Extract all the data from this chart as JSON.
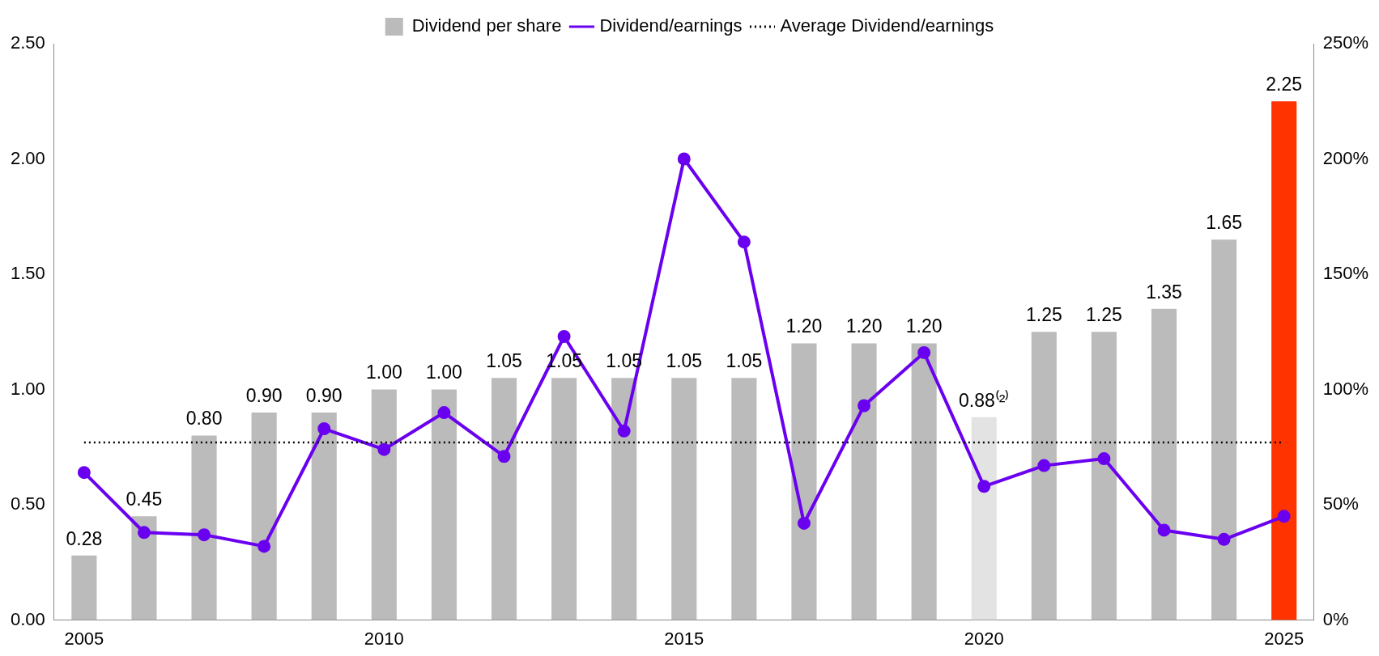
{
  "chart_data": {
    "type": "bar",
    "categories": [
      "2005",
      null,
      null,
      null,
      null,
      "2010",
      null,
      null,
      null,
      null,
      "2015",
      null,
      null,
      null,
      null,
      "2020",
      null,
      null,
      null,
      null,
      "2025"
    ],
    "series": [
      {
        "name": "Dividend per share",
        "colors": [
          "#bbbbbb",
          "#bbbbbb",
          "#bbbbbb",
          "#bbbbbb",
          "#bbbbbb",
          "#bbbbbb",
          "#bbbbbb",
          "#bbbbbb",
          "#bbbbbb",
          "#bbbbbb",
          "#bbbbbb",
          "#bbbbbb",
          "#bbbbbb",
          "#bbbbbb",
          "#bbbbbb",
          "#e3e3e3",
          "#bbbbbb",
          "#bbbbbb",
          "#bbbbbb",
          "#bbbbbb",
          "#ff3300"
        ],
        "values": [
          0.28,
          0.45,
          0.8,
          0.9,
          0.9,
          1.0,
          1.0,
          1.05,
          1.05,
          1.05,
          1.05,
          1.05,
          1.2,
          1.2,
          1.2,
          0.88,
          1.25,
          1.25,
          1.35,
          1.65,
          2.25
        ],
        "value_labels": [
          "0.28",
          "0.45",
          "0.80",
          "0.90",
          "0.90",
          "1.00",
          "1.00",
          "1.05",
          "1.05",
          "1.05",
          "1.05",
          "1.05",
          "1.20",
          "1.20",
          "1.20",
          "0.88⁽²⁾",
          "1.25",
          "1.25",
          "1.35",
          "1.65",
          "2.25"
        ]
      },
      {
        "name": "Dividend/earnings",
        "type": "line",
        "axis": "y2",
        "color": "#6a00f0",
        "marker": "circle",
        "values": [
          64,
          38,
          37,
          32,
          83,
          74,
          90,
          71,
          123,
          82,
          200,
          164,
          42,
          93,
          116,
          58,
          67,
          70,
          39,
          35,
          45
        ]
      }
    ],
    "ref_lines": [
      {
        "axis": "y2",
        "value": 77,
        "label": "Average Dividend/earnings",
        "color": "#000000",
        "line_style": "dotted"
      }
    ],
    "ylim": [
      0,
      2.5
    ],
    "yticks": [
      {
        "value": 0,
        "label": "0.00"
      },
      {
        "value": 0.5,
        "label": "0.50"
      },
      {
        "value": 1,
        "label": "1.00"
      },
      {
        "value": 1.5,
        "label": "1.50"
      },
      {
        "value": 2,
        "label": "2.00"
      },
      {
        "value": 2.5,
        "label": "2.50"
      }
    ],
    "y2lim": [
      0,
      250
    ],
    "y2ticks": [
      {
        "value": 0,
        "label": "0%"
      },
      {
        "value": 50,
        "label": "50%"
      },
      {
        "value": 100,
        "label": "100%"
      },
      {
        "value": 150,
        "label": "150%"
      },
      {
        "value": 200,
        "label": "200%"
      },
      {
        "value": 250,
        "label": "250%"
      }
    ],
    "grid": false,
    "legend": "top"
  }
}
